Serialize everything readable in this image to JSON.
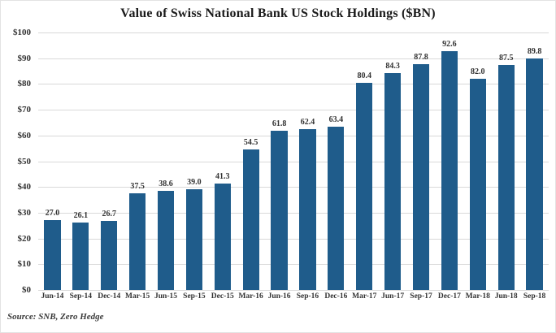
{
  "figure": {
    "title": "Value of Swiss National Bank US Stock Holdings ($BN)",
    "source": "Source: SNB, Zero Hedge"
  },
  "colors": {
    "bar": "#1f5c8b",
    "grid": "#d9d9d9",
    "title_text": "#1a1a1a",
    "label_text": "#333333",
    "border": "#e3e3e3",
    "background": "#ffffff"
  },
  "chart_data": {
    "type": "bar",
    "title": "Value of Swiss National Bank US Stock Holdings ($BN)",
    "categories": [
      "Jun-14",
      "Sep-14",
      "Dec-14",
      "Mar-15",
      "Jun-15",
      "Sep-15",
      "Dec-15",
      "Mar-16",
      "Jun-16",
      "Sep-16",
      "Dec-16",
      "Mar-17",
      "Jun-17",
      "Sep-17",
      "Dec-17",
      "Mar-18",
      "Jun-18",
      "Sep-18"
    ],
    "values": [
      27.0,
      26.1,
      26.7,
      37.5,
      38.6,
      39.0,
      41.3,
      54.5,
      61.8,
      62.4,
      63.4,
      80.4,
      84.3,
      87.8,
      92.6,
      82.0,
      87.5,
      89.8
    ],
    "value_labels": [
      "27.0",
      "26.1",
      "26.7",
      "37.5",
      "38.6",
      "39.0",
      "41.3",
      "54.5",
      "61.8",
      "62.4",
      "63.4",
      "80.4",
      "84.3",
      "87.8",
      "92.6",
      "82.0",
      "87.5",
      "89.8"
    ],
    "xlabel": "",
    "ylabel": "",
    "y_ticks_top_to_bottom": [
      "$100",
      "$90",
      "$80",
      "$70",
      "$60",
      "$50",
      "$40",
      "$30",
      "$20",
      "$10",
      "$0"
    ],
    "ylim": [
      0,
      100
    ],
    "grid": true,
    "legend": "none",
    "source": "Source: SNB, Zero Hedge"
  }
}
